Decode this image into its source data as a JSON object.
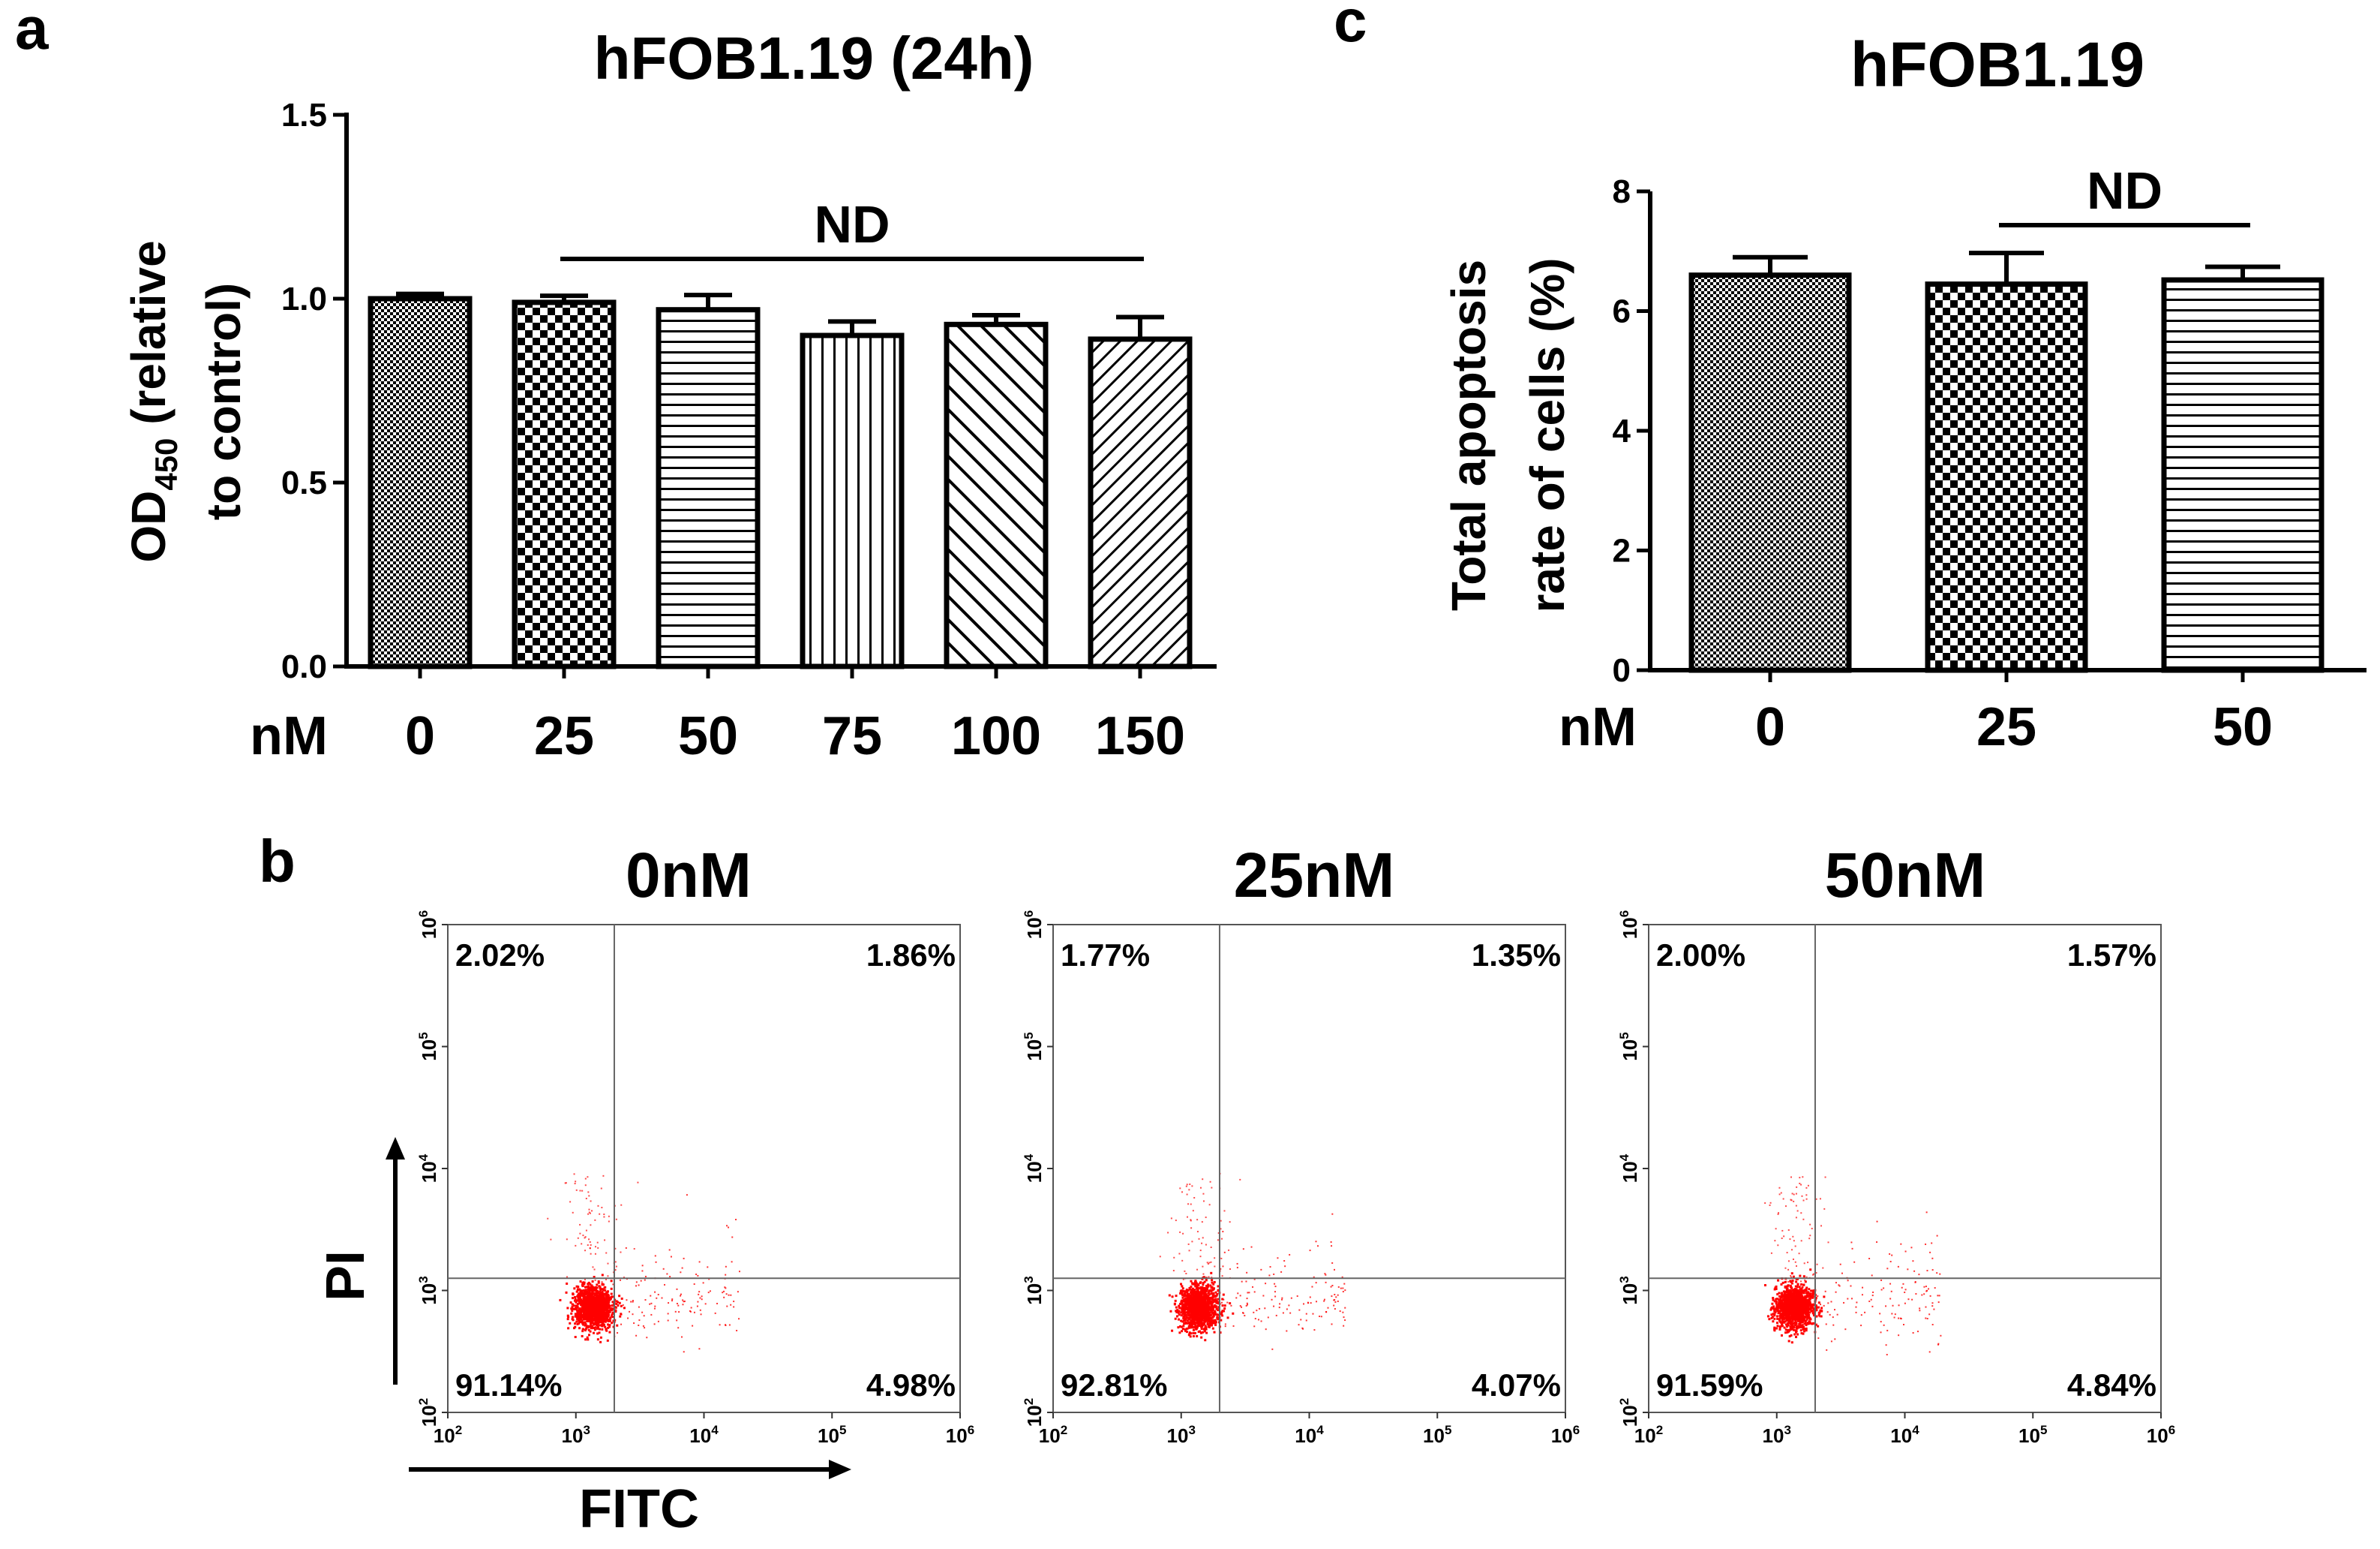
{
  "figure": {
    "panel_labels": [
      "a",
      "b",
      "c"
    ]
  },
  "chart_data": [
    {
      "id": "a",
      "type": "bar",
      "title": "hFOB1.19 (24h)",
      "xlabel": "nM",
      "ylabel_main": "OD",
      "ylabel_sub": "450",
      "ylabel_rest": " (relative",
      "ylabel_line2": "to control)",
      "categories": [
        "0",
        "25",
        "50",
        "75",
        "100",
        "150"
      ],
      "values": [
        1.0,
        0.99,
        0.97,
        0.9,
        0.93,
        0.89
      ],
      "errors": [
        0.013,
        0.018,
        0.04,
        0.038,
        0.025,
        0.06
      ],
      "patterns": [
        "fine-check",
        "checker",
        "hlines",
        "vlines",
        "diag-wide",
        "diag-narrow"
      ],
      "ylim": [
        0,
        1.5
      ],
      "yticks": [
        0.0,
        0.5,
        1.0,
        1.5
      ],
      "ytick_labels": [
        "0.0",
        "0.5",
        "1.0",
        "1.5"
      ],
      "annotation": {
        "text": "ND",
        "from": "25",
        "to": "150"
      }
    },
    {
      "id": "c",
      "type": "bar",
      "title": "hFOB1.19",
      "xlabel": "nM",
      "ylabel_line1": "Total apoptosis",
      "ylabel_line2": "rate of cells (%)",
      "categories": [
        "0",
        "25",
        "50"
      ],
      "values": [
        6.6,
        6.45,
        6.52
      ],
      "errors": [
        0.3,
        0.52,
        0.22
      ],
      "patterns": [
        "fine-check",
        "checker",
        "hlines"
      ],
      "ylim": [
        0,
        8
      ],
      "yticks": [
        0,
        2,
        4,
        6,
        8
      ],
      "ytick_labels": [
        "0",
        "2",
        "4",
        "6",
        "8"
      ],
      "annotation": {
        "text": "ND",
        "from": "25",
        "to": "50"
      }
    },
    {
      "id": "b",
      "type": "scatter",
      "xlabel": "FITC",
      "ylabel": "PI",
      "tick_base": "10",
      "x_exponents": [
        "2",
        "3",
        "4",
        "5",
        "6"
      ],
      "y_exponents": [
        "2",
        "3",
        "4",
        "5",
        "6"
      ],
      "log_range": [
        2,
        6
      ],
      "quadrant_gate": {
        "x_log": 3.3,
        "y_log": 3.1
      },
      "point_color": "#ff0000",
      "plots": [
        {
          "title": "0nM",
          "UL": "2.02%",
          "UR": "1.86%",
          "LL": "91.14%",
          "LR": "4.98%"
        },
        {
          "title": "25nM",
          "UL": "1.77%",
          "UR": "1.35%",
          "LL": "92.81%",
          "LR": "4.07%"
        },
        {
          "title": "50nM",
          "UL": "2.00%",
          "UR": "1.57%",
          "LL": "91.59%",
          "LR": "4.84%"
        }
      ]
    }
  ]
}
